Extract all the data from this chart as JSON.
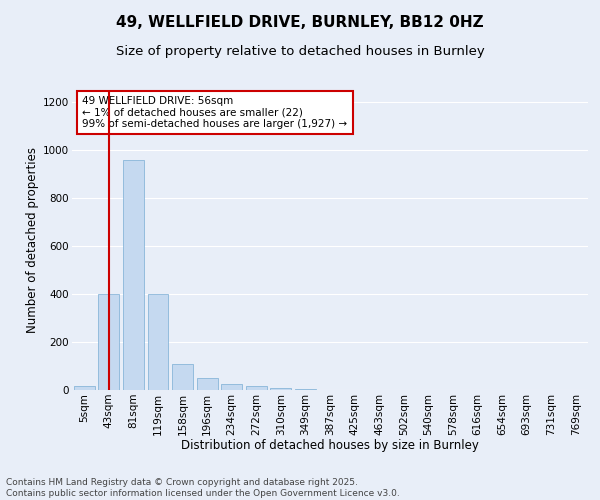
{
  "title": "49, WELLFIELD DRIVE, BURNLEY, BB12 0HZ",
  "subtitle": "Size of property relative to detached houses in Burnley",
  "xlabel": "Distribution of detached houses by size in Burnley",
  "ylabel": "Number of detached properties",
  "categories": [
    "5sqm",
    "43sqm",
    "81sqm",
    "119sqm",
    "158sqm",
    "196sqm",
    "234sqm",
    "272sqm",
    "310sqm",
    "349sqm",
    "387sqm",
    "425sqm",
    "463sqm",
    "502sqm",
    "540sqm",
    "578sqm",
    "616sqm",
    "654sqm",
    "693sqm",
    "731sqm",
    "769sqm"
  ],
  "values": [
    15,
    400,
    960,
    400,
    110,
    50,
    25,
    15,
    10,
    5,
    0,
    0,
    0,
    0,
    0,
    0,
    0,
    0,
    0,
    0,
    0
  ],
  "bar_color": "#c5d9f0",
  "bar_edge_color": "#7aadd4",
  "bg_color": "#e8eef8",
  "fig_bg_color": "#e8eef8",
  "grid_color": "#ffffff",
  "vline_x": 1,
  "vline_color": "#cc0000",
  "annotation_text": "49 WELLFIELD DRIVE: 56sqm\n← 1% of detached houses are smaller (22)\n99% of semi-detached houses are larger (1,927) →",
  "annotation_box_color": "#cc0000",
  "annotation_bg": "#ffffff",
  "ylim": [
    0,
    1250
  ],
  "yticks": [
    0,
    200,
    400,
    600,
    800,
    1000,
    1200
  ],
  "footer_line1": "Contains HM Land Registry data © Crown copyright and database right 2025.",
  "footer_line2": "Contains public sector information licensed under the Open Government Licence v3.0.",
  "title_fontsize": 11,
  "subtitle_fontsize": 9.5,
  "axis_label_fontsize": 8.5,
  "tick_fontsize": 7.5,
  "annotation_fontsize": 7.5,
  "footer_fontsize": 6.5
}
